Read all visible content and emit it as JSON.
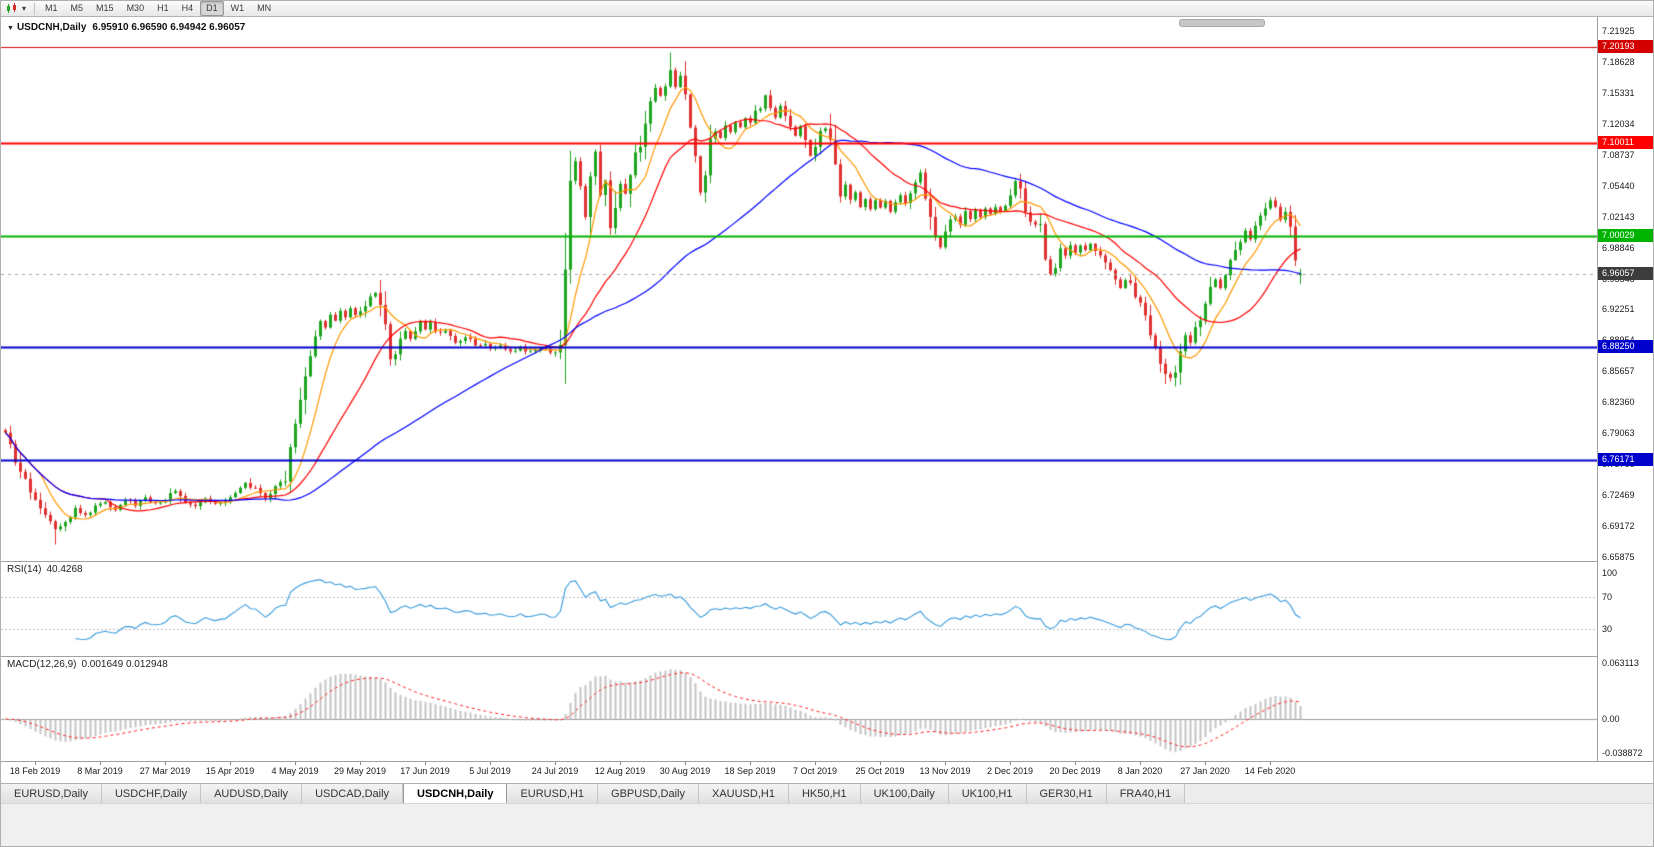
{
  "icons": {
    "triangle_down": "▼",
    "chevron_down": "▾"
  },
  "toolbar": {
    "chart_type_icon": "candlestick-chart-icon",
    "timeframes": [
      "M1",
      "M5",
      "M15",
      "M30",
      "H1",
      "H4",
      "D1",
      "W1",
      "MN"
    ],
    "active_timeframe": "D1"
  },
  "chart_header": {
    "title": "USDCNH,Daily",
    "ohlc": "6.95910 6.96590 6.94942 6.96057"
  },
  "colors": {
    "up_candle": "#1fa51f",
    "down_candle": "#e03232",
    "ma_fast": "#ff9900",
    "ma_mid": "#ff0000",
    "ma_slow": "#0000ff",
    "rsi_line": "#3a9bdc",
    "rsi_level_dash": "#c0c0c0",
    "macd_histogram": "#c4c4c4",
    "macd_signal": "#ff2020",
    "macd_zero_line": "#9a9a9a",
    "current_price_line": "#a6a6a6",
    "panel_divider": "#a0a0a0"
  },
  "price_markers": [
    {
      "label": "7.20193",
      "price": 7.20193,
      "color": "#d40000",
      "line_width": 1,
      "line_style": "solid"
    },
    {
      "label": "7.10011",
      "price": 7.10011,
      "color": "#ff0000",
      "line_width": 2,
      "line_style": "solid"
    },
    {
      "label": "7.00029",
      "price": 7.00029,
      "color": "#00b300",
      "line_width": 2,
      "line_style": "solid"
    },
    {
      "label": "6.96057",
      "price": 6.96057,
      "color": "#3c3c3c",
      "line_width": 1,
      "line_style": "dash"
    },
    {
      "label": "6.88250",
      "price": 6.8825,
      "color": "#0000cc",
      "line_width": 2,
      "line_style": "solid"
    },
    {
      "label": "6.76171",
      "price": 6.76171,
      "color": "#0000cc",
      "line_width": 2,
      "line_style": "solid"
    }
  ],
  "rsi_panel": {
    "title": "RSI(14)",
    "value": "40.4268",
    "period": 14,
    "levels": [
      70,
      30
    ],
    "axis_labels": [
      "100",
      "70",
      "30"
    ]
  },
  "macd_panel": {
    "title": "MACD(12,26,9)",
    "values": "0.001649 0.012948",
    "fast": 12,
    "slow": 26,
    "signal": 9,
    "axis_labels": [
      "0.063113",
      "0.00",
      "-0.038872"
    ]
  },
  "tabs": {
    "active": "USDCNH,Daily",
    "items": [
      "EURUSD,Daily",
      "USDCHF,Daily",
      "AUDUSD,Daily",
      "USDCAD,Daily",
      "USDCNH,Daily",
      "EURUSD,H1",
      "GBPUSD,Daily",
      "XAUUSD,H1",
      "HK50,H1",
      "UK100,Daily",
      "UK100,H1",
      "GER30,H1",
      "FRA40,H1"
    ]
  },
  "chart_data": {
    "type": "candlestick",
    "symbol": "USDCNH",
    "timeframe": "Daily",
    "last_ohlc": {
      "open": 6.9591,
      "high": 6.9659,
      "low": 6.94942,
      "close": 6.96057
    },
    "ylim": [
      6.65875,
      7.21925
    ],
    "y_axis_labels": [
      "7.21925",
      "7.18628",
      "7.15331",
      "7.12034",
      "7.08737",
      "7.05440",
      "7.02143",
      "6.98846",
      "6.95548",
      "6.92251",
      "6.88954",
      "6.85657",
      "6.82360",
      "6.79063",
      "6.75766",
      "6.72469",
      "6.69172",
      "6.65875"
    ],
    "x_axis_labels": [
      {
        "index": 6,
        "label": "18 Feb 2019"
      },
      {
        "index": 19,
        "label": "8 Mar 2019"
      },
      {
        "index": 32,
        "label": "27 Mar 2019"
      },
      {
        "index": 45,
        "label": "15 Apr 2019"
      },
      {
        "index": 58,
        "label": "4 May 2019"
      },
      {
        "index": 71,
        "label": "29 May 2019"
      },
      {
        "index": 84,
        "label": "17 Jun 2019"
      },
      {
        "index": 97,
        "label": "5 Jul 2019"
      },
      {
        "index": 110,
        "label": "24 Jul 2019"
      },
      {
        "index": 123,
        "label": "12 Aug 2019"
      },
      {
        "index": 136,
        "label": "30 Aug 2019"
      },
      {
        "index": 149,
        "label": "18 Sep 2019"
      },
      {
        "index": 162,
        "label": "7 Oct 2019"
      },
      {
        "index": 175,
        "label": "25 Oct 2019"
      },
      {
        "index": 188,
        "label": "13 Nov 2019"
      },
      {
        "index": 201,
        "label": "2 Dec 2019"
      },
      {
        "index": 214,
        "label": "20 Dec 2019"
      },
      {
        "index": 227,
        "label": "8 Jan 2020"
      },
      {
        "index": 240,
        "label": "27 Jan 2020"
      },
      {
        "index": 253,
        "label": "14 Feb 2020"
      }
    ],
    "candle_count": 260,
    "close_path_anchors": [
      [
        0,
        6.788
      ],
      [
        2,
        6.76
      ],
      [
        4,
        6.738
      ],
      [
        6,
        6.722
      ],
      [
        8,
        6.705
      ],
      [
        10,
        6.69
      ],
      [
        12,
        6.698
      ],
      [
        14,
        6.71
      ],
      [
        16,
        6.703
      ],
      [
        18,
        6.712
      ],
      [
        20,
        6.718
      ],
      [
        22,
        6.71
      ],
      [
        24,
        6.72
      ],
      [
        26,
        6.714
      ],
      [
        28,
        6.722
      ],
      [
        30,
        6.716
      ],
      [
        32,
        6.72
      ],
      [
        34,
        6.73
      ],
      [
        36,
        6.718
      ],
      [
        38,
        6.712
      ],
      [
        40,
        6.721
      ],
      [
        42,
        6.716
      ],
      [
        44,
        6.72
      ],
      [
        46,
        6.727
      ],
      [
        48,
        6.738
      ],
      [
        50,
        6.73
      ],
      [
        52,
        6.72
      ],
      [
        54,
        6.734
      ],
      [
        56,
        6.741
      ],
      [
        57,
        6.77
      ],
      [
        58,
        6.8
      ],
      [
        59,
        6.826
      ],
      [
        60,
        6.852
      ],
      [
        61,
        6.878
      ],
      [
        62,
        6.898
      ],
      [
        63,
        6.912
      ],
      [
        64,
        6.904
      ],
      [
        65,
        6.916
      ],
      [
        66,
        6.909
      ],
      [
        67,
        6.92
      ],
      [
        68,
        6.913
      ],
      [
        69,
        6.923
      ],
      [
        70,
        6.916
      ],
      [
        71,
        6.92
      ],
      [
        72,
        6.927
      ],
      [
        73,
        6.933
      ],
      [
        74,
        6.94
      ],
      [
        75,
        6.928
      ],
      [
        76,
        6.895
      ],
      [
        77,
        6.865
      ],
      [
        78,
        6.872
      ],
      [
        79,
        6.89
      ],
      [
        80,
        6.899
      ],
      [
        81,
        6.892
      ],
      [
        82,
        6.902
      ],
      [
        83,
        6.908
      ],
      [
        84,
        6.902
      ],
      [
        85,
        6.907
      ],
      [
        86,
        6.897
      ],
      [
        88,
        6.901
      ],
      [
        90,
        6.888
      ],
      [
        92,
        6.893
      ],
      [
        94,
        6.884
      ],
      [
        96,
        6.888
      ],
      [
        97,
        6.88
      ],
      [
        99,
        6.884
      ],
      [
        101,
        6.878
      ],
      [
        103,
        6.882
      ],
      [
        105,
        6.877
      ],
      [
        107,
        6.881
      ],
      [
        109,
        6.877
      ],
      [
        110,
        6.88
      ],
      [
        111,
        6.89
      ],
      [
        112,
        6.942
      ],
      [
        113,
        7.048
      ],
      [
        114,
        7.082
      ],
      [
        115,
        7.058
      ],
      [
        116,
        7.018
      ],
      [
        117,
        7.072
      ],
      [
        118,
        7.088
      ],
      [
        119,
        7.048
      ],
      [
        120,
        7.062
      ],
      [
        121,
        7.008
      ],
      [
        122,
        7.035
      ],
      [
        123,
        7.058
      ],
      [
        124,
        7.048
      ],
      [
        125,
        7.068
      ],
      [
        126,
        7.088
      ],
      [
        127,
        7.102
      ],
      [
        128,
        7.122
      ],
      [
        129,
        7.142
      ],
      [
        130,
        7.158
      ],
      [
        131,
        7.148
      ],
      [
        132,
        7.165
      ],
      [
        133,
        7.176
      ],
      [
        134,
        7.158
      ],
      [
        135,
        7.172
      ],
      [
        136,
        7.15
      ],
      [
        137,
        7.122
      ],
      [
        138,
        7.088
      ],
      [
        139,
        7.048
      ],
      [
        140,
        7.072
      ],
      [
        141,
        7.098
      ],
      [
        142,
        7.112
      ],
      [
        143,
        7.104
      ],
      [
        144,
        7.118
      ],
      [
        145,
        7.112
      ],
      [
        146,
        7.124
      ],
      [
        147,
        7.117
      ],
      [
        148,
        7.128
      ],
      [
        149,
        7.12
      ],
      [
        150,
        7.13
      ],
      [
        151,
        7.141
      ],
      [
        152,
        7.15
      ],
      [
        153,
        7.138
      ],
      [
        154,
        7.128
      ],
      [
        155,
        7.14
      ],
      [
        156,
        7.131
      ],
      [
        157,
        7.119
      ],
      [
        158,
        7.108
      ],
      [
        159,
        7.117
      ],
      [
        160,
        7.1
      ],
      [
        161,
        7.088
      ],
      [
        162,
        7.096
      ],
      [
        163,
        7.11
      ],
      [
        164,
        7.117
      ],
      [
        165,
        7.096
      ],
      [
        166,
        7.068
      ],
      [
        167,
        7.042
      ],
      [
        168,
        7.054
      ],
      [
        169,
        7.038
      ],
      [
        170,
        7.047
      ],
      [
        171,
        7.033
      ],
      [
        172,
        7.041
      ],
      [
        173,
        7.03
      ],
      [
        174,
        7.038
      ],
      [
        175,
        7.031
      ],
      [
        176,
        7.039
      ],
      [
        177,
        7.028
      ],
      [
        178,
        7.036
      ],
      [
        179,
        7.043
      ],
      [
        180,
        7.036
      ],
      [
        181,
        7.048
      ],
      [
        182,
        7.056
      ],
      [
        183,
        7.066
      ],
      [
        184,
        7.046
      ],
      [
        185,
        7.02
      ],
      [
        186,
        7.002
      ],
      [
        187,
        6.99
      ],
      [
        188,
        7.003
      ],
      [
        189,
        7.014
      ],
      [
        190,
        7.021
      ],
      [
        191,
        7.014
      ],
      [
        192,
        7.026
      ],
      [
        193,
        7.019
      ],
      [
        194,
        7.029
      ],
      [
        195,
        7.022
      ],
      [
        196,
        7.031
      ],
      [
        197,
        7.024
      ],
      [
        198,
        7.033
      ],
      [
        199,
        7.027
      ],
      [
        200,
        7.036
      ],
      [
        201,
        7.041
      ],
      [
        202,
        7.06
      ],
      [
        203,
        7.046
      ],
      [
        204,
        7.03
      ],
      [
        205,
        7.02
      ],
      [
        206,
        7.012
      ],
      [
        207,
        7.019
      ],
      [
        208,
        6.984
      ],
      [
        209,
        6.958
      ],
      [
        210,
        6.97
      ],
      [
        211,
        6.986
      ],
      [
        212,
        6.978
      ],
      [
        213,
        6.99
      ],
      [
        214,
        6.983
      ],
      [
        215,
        6.99
      ],
      [
        216,
        6.985
      ],
      [
        217,
        6.992
      ],
      [
        218,
        6.986
      ],
      [
        219,
        6.979
      ],
      [
        220,
        6.97
      ],
      [
        221,
        6.961
      ],
      [
        222,
        6.953
      ],
      [
        223,
        6.946
      ],
      [
        224,
        6.955
      ],
      [
        225,
        6.948
      ],
      [
        226,
        6.94
      ],
      [
        227,
        6.93
      ],
      [
        228,
        6.912
      ],
      [
        229,
        6.895
      ],
      [
        230,
        6.88
      ],
      [
        231,
        6.866
      ],
      [
        232,
        6.856
      ],
      [
        233,
        6.85
      ],
      [
        234,
        6.86
      ],
      [
        235,
        6.88
      ],
      [
        236,
        6.896
      ],
      [
        237,
        6.888
      ],
      [
        238,
        6.904
      ],
      [
        239,
        6.916
      ],
      [
        240,
        6.928
      ],
      [
        241,
        6.942
      ],
      [
        242,
        6.955
      ],
      [
        243,
        6.946
      ],
      [
        244,
        6.96
      ],
      [
        245,
        6.972
      ],
      [
        246,
        6.984
      ],
      [
        247,
        6.996
      ],
      [
        248,
        7.006
      ],
      [
        249,
        6.996
      ],
      [
        250,
        7.008
      ],
      [
        251,
        7.02
      ],
      [
        252,
        7.034
      ],
      [
        253,
        7.04
      ],
      [
        254,
        7.03
      ],
      [
        255,
        7.018
      ],
      [
        256,
        7.024
      ],
      [
        257,
        7.01
      ],
      [
        258,
        6.968
      ],
      [
        259,
        6.961
      ]
    ],
    "wick_overrides": [
      [
        10,
        "l",
        6.672
      ],
      [
        133,
        "h",
        7.1962
      ],
      [
        232,
        "l",
        6.8432
      ]
    ],
    "moving_averages": [
      {
        "period": 8,
        "color_key": "ma_fast"
      },
      {
        "period": 21,
        "color_key": "ma_mid"
      },
      {
        "period": 55,
        "color_key": "ma_slow"
      }
    ]
  }
}
